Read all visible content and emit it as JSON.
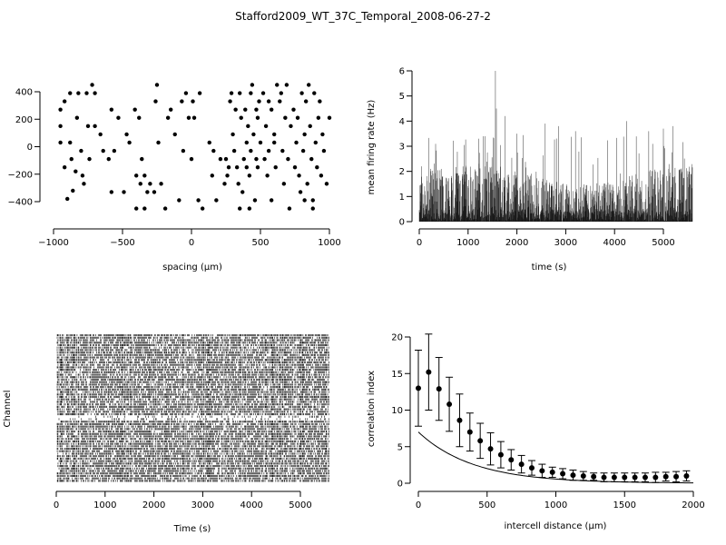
{
  "figure_title": "Stafford2009_WT_37C_Temporal_2008-06-27-2",
  "chart_data": [
    {
      "id": "layout",
      "type": "scatter",
      "xlabel": "spacing (µm)",
      "ylabel": "",
      "xlim": [
        -1000,
        1000
      ],
      "ylim": [
        -450,
        450
      ],
      "xticks": [
        -1000,
        -500,
        0,
        500,
        1000
      ],
      "yticks": [
        -400,
        -200,
        0,
        200,
        400
      ],
      "grid": false,
      "points": [
        [
          -950,
          270
        ],
        [
          -950,
          150
        ],
        [
          -950,
          30
        ],
        [
          -920,
          -150
        ],
        [
          -900,
          -380
        ],
        [
          -920,
          330
        ],
        [
          -880,
          390
        ],
        [
          -880,
          30
        ],
        [
          -870,
          -90
        ],
        [
          -860,
          -320
        ],
        [
          -840,
          -180
        ],
        [
          -830,
          210
        ],
        [
          -820,
          390
        ],
        [
          -800,
          -30
        ],
        [
          -790,
          -210
        ],
        [
          -780,
          -270
        ],
        [
          -760,
          390
        ],
        [
          -750,
          150
        ],
        [
          -740,
          -90
        ],
        [
          -720,
          450
        ],
        [
          -700,
          390
        ],
        [
          -700,
          150
        ],
        [
          -660,
          90
        ],
        [
          -640,
          -30
        ],
        [
          -600,
          -90
        ],
        [
          -580,
          270
        ],
        [
          -580,
          -330
        ],
        [
          -560,
          -30
        ],
        [
          -530,
          210
        ],
        [
          -490,
          -330
        ],
        [
          -470,
          90
        ],
        [
          -450,
          30
        ],
        [
          -410,
          270
        ],
        [
          -400,
          -210
        ],
        [
          -400,
          -450
        ],
        [
          -380,
          210
        ],
        [
          -370,
          -270
        ],
        [
          -360,
          -90
        ],
        [
          -340,
          -210
        ],
        [
          -340,
          -450
        ],
        [
          -320,
          -330
        ],
        [
          -300,
          -270
        ],
        [
          -270,
          -330
        ],
        [
          -260,
          330
        ],
        [
          -250,
          450
        ],
        [
          -240,
          30
        ],
        [
          -220,
          -270
        ],
        [
          -190,
          -450
        ],
        [
          -170,
          210
        ],
        [
          -150,
          270
        ],
        [
          -120,
          90
        ],
        [
          -90,
          -390
        ],
        [
          -70,
          330
        ],
        [
          -60,
          -30
        ],
        [
          -40,
          390
        ],
        [
          -20,
          210
        ],
        [
          0,
          -90
        ],
        [
          10,
          330
        ],
        [
          20,
          210
        ],
        [
          50,
          -390
        ],
        [
          60,
          390
        ],
        [
          80,
          -450
        ],
        [
          130,
          30
        ],
        [
          160,
          -30
        ],
        [
          150,
          -210
        ],
        [
          180,
          -390
        ],
        [
          210,
          -90
        ],
        [
          240,
          -270
        ],
        [
          260,
          -210
        ],
        [
          270,
          -150
        ],
        [
          280,
          330
        ],
        [
          290,
          390
        ],
        [
          300,
          90
        ],
        [
          310,
          -30
        ],
        [
          320,
          270
        ],
        [
          330,
          -150
        ],
        [
          340,
          -270
        ],
        [
          350,
          390
        ],
        [
          350,
          -450
        ],
        [
          360,
          210
        ],
        [
          370,
          -330
        ],
        [
          380,
          -90
        ],
        [
          390,
          270
        ],
        [
          400,
          30
        ],
        [
          410,
          150
        ],
        [
          420,
          -210
        ],
        [
          420,
          -450
        ],
        [
          430,
          390
        ],
        [
          440,
          450
        ],
        [
          450,
          90
        ],
        [
          460,
          -390
        ],
        [
          470,
          270
        ],
        [
          480,
          210
        ],
        [
          480,
          -150
        ],
        [
          490,
          330
        ],
        [
          500,
          30
        ],
        [
          520,
          390
        ],
        [
          530,
          -90
        ],
        [
          540,
          150
        ],
        [
          550,
          -210
        ],
        [
          560,
          -30
        ],
        [
          580,
          270
        ],
        [
          580,
          -390
        ],
        [
          600,
          90
        ],
        [
          610,
          -150
        ],
        [
          620,
          450
        ],
        [
          640,
          330
        ],
        [
          660,
          -30
        ],
        [
          670,
          -270
        ],
        [
          680,
          210
        ],
        [
          690,
          450
        ],
        [
          700,
          -90
        ],
        [
          710,
          -450
        ],
        [
          720,
          150
        ],
        [
          740,
          270
        ],
        [
          750,
          -150
        ],
        [
          760,
          30
        ],
        [
          770,
          210
        ],
        [
          780,
          -210
        ],
        [
          790,
          -330
        ],
        [
          800,
          390
        ],
        [
          810,
          -30
        ],
        [
          820,
          90
        ],
        [
          830,
          330
        ],
        [
          840,
          -270
        ],
        [
          850,
          450
        ],
        [
          860,
          150
        ],
        [
          870,
          -90
        ],
        [
          880,
          -390
        ],
        [
          890,
          390
        ],
        [
          900,
          30
        ],
        [
          910,
          -150
        ],
        [
          920,
          210
        ],
        [
          930,
          330
        ],
        [
          940,
          -210
        ],
        [
          950,
          90
        ],
        [
          960,
          -30
        ],
        [
          980,
          -270
        ],
        [
          1000,
          210
        ],
        [
          820,
          -390
        ],
        [
          880,
          -450
        ],
        [
          650,
          390
        ],
        [
          600,
          30
        ],
        [
          560,
          330
        ],
        [
          430,
          -30
        ],
        [
          470,
          -90
        ],
        [
          400,
          -150
        ],
        [
          250,
          -90
        ]
      ]
    },
    {
      "id": "firing_rate",
      "type": "bar",
      "xlabel": "time (s)",
      "ylabel": "mean firing rate (Hz)",
      "xlim": [
        0,
        5600
      ],
      "ylim": [
        0,
        6
      ],
      "xticks": [
        0,
        1000,
        2000,
        3000,
        4000,
        5000
      ],
      "yticks": [
        0,
        1,
        2,
        3,
        4,
        5,
        6
      ],
      "bin_seconds": 5,
      "peaks": [
        [
          50,
          2.2
        ],
        [
          230,
          2.1
        ],
        [
          1220,
          3.3
        ],
        [
          1350,
          3.4
        ],
        [
          1560,
          6.0
        ],
        [
          1580,
          4.5
        ],
        [
          1760,
          4.2
        ],
        [
          2000,
          3.5
        ],
        [
          2580,
          3.9
        ],
        [
          2850,
          3.8
        ],
        [
          3200,
          3.6
        ],
        [
          4250,
          4.0
        ],
        [
          4700,
          3.6
        ],
        [
          5000,
          3.7
        ],
        [
          5200,
          3.8
        ]
      ]
    },
    {
      "id": "raster",
      "type": "raster",
      "xlabel": "Time (s)",
      "ylabel": "Channel",
      "xlim": [
        0,
        5600
      ],
      "xticks": [
        0,
        1000,
        2000,
        3000,
        4000,
        5000
      ],
      "channels": 60
    },
    {
      "id": "correlation",
      "type": "scatter",
      "xlabel": "intercell distance (µm)",
      "ylabel": "correlation index",
      "xlim": [
        0,
        2000
      ],
      "ylim": [
        0,
        20
      ],
      "xticks": [
        0,
        500,
        1000,
        1500,
        2000
      ],
      "yticks": [
        0,
        5,
        10,
        15,
        20
      ],
      "x": [
        0,
        75,
        150,
        225,
        300,
        375,
        450,
        525,
        600,
        675,
        750,
        825,
        900,
        975,
        1050,
        1125,
        1200,
        1275,
        1350,
        1425,
        1500,
        1575,
        1650,
        1725,
        1800,
        1875,
        1950
      ],
      "mean": [
        13.0,
        15.2,
        12.9,
        10.8,
        8.6,
        7.0,
        5.8,
        4.7,
        3.9,
        3.2,
        2.6,
        2.1,
        1.7,
        1.5,
        1.3,
        1.1,
        1.0,
        0.9,
        0.8,
        0.8,
        0.8,
        0.8,
        0.8,
        0.8,
        0.9,
        0.9,
        1.0
      ],
      "upper": [
        18.2,
        20.4,
        17.2,
        14.5,
        12.2,
        9.6,
        8.2,
        6.9,
        5.7,
        4.6,
        3.8,
        3.1,
        2.6,
        2.2,
        2.0,
        1.8,
        1.6,
        1.4,
        1.4,
        1.4,
        1.4,
        1.4,
        1.4,
        1.5,
        1.5,
        1.6,
        1.7
      ],
      "lower": [
        7.8,
        10.0,
        8.6,
        7.1,
        5.0,
        4.4,
        3.4,
        2.5,
        2.1,
        1.8,
        1.4,
        1.1,
        0.8,
        0.8,
        0.6,
        0.4,
        0.4,
        0.4,
        0.2,
        0.2,
        0.2,
        0.2,
        0.2,
        0.1,
        0.3,
        0.2,
        0.3
      ],
      "fit_curve": {
        "a": 7.0,
        "lambda_um": 400
      }
    }
  ]
}
